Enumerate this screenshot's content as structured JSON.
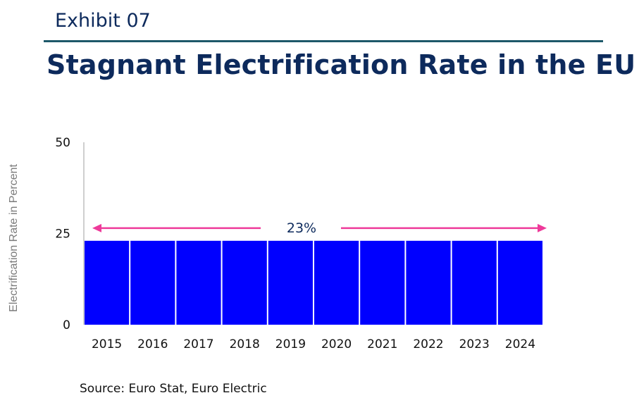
{
  "header": {
    "exhibit": "Exhibit 07",
    "title": "Stagnant Electrification Rate in the EU"
  },
  "source": "Source: Euro Stat, Euro Electric",
  "colors": {
    "bar": "#0000ff",
    "annotation": "#ee3a9a",
    "title": "#0d2a5c"
  },
  "chart_data": {
    "type": "bar",
    "categories": [
      "2015",
      "2016",
      "2017",
      "2018",
      "2019",
      "2020",
      "2021",
      "2022",
      "2023",
      "2024"
    ],
    "values": [
      23,
      23,
      23,
      23,
      23,
      23,
      23,
      23,
      23,
      23
    ],
    "ylabel": "Electrification Rate in Percent",
    "xlabel": "",
    "ylim": [
      0,
      50
    ],
    "yticks": [
      "0",
      "25",
      "50"
    ],
    "annotation": "23%",
    "grid": false,
    "legend": "none"
  }
}
